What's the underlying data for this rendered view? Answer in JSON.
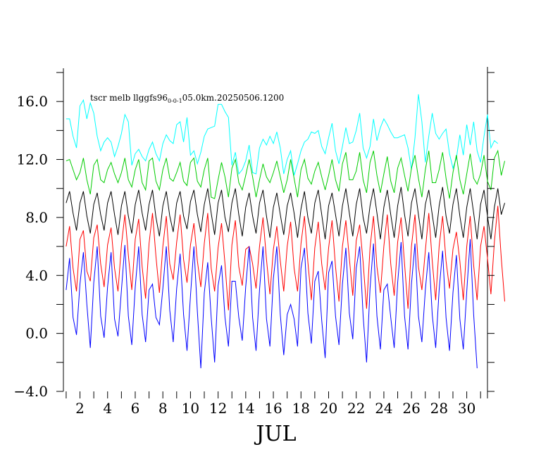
{
  "chart_data": {
    "type": "line",
    "title_parts": [
      "tscr melb llggfs96",
      "0-0-1",
      "05.0km.20250506.1200"
    ],
    "xlabel": "JUL",
    "ylabel": "",
    "xlim": [
      0.8,
      31.5
    ],
    "ylim": [
      -4,
      18
    ],
    "x_ticks": [
      2,
      4,
      6,
      8,
      10,
      12,
      14,
      16,
      18,
      20,
      22,
      24,
      26,
      28,
      30
    ],
    "y_ticks": [
      -4,
      0,
      4,
      8,
      12,
      16
    ],
    "y_tick_labels": [
      "−4.0",
      "0.0",
      "4.0",
      "8.0",
      "12.0",
      "16.0"
    ],
    "grid": false,
    "x_start": 1,
    "x_step": 0.25,
    "series": [
      {
        "color": "#00ffff",
        "values": [
          14.8,
          14.8,
          13.6,
          12.8,
          15.7,
          16.1,
          14.8,
          15.9,
          15.2,
          13.6,
          12.6,
          13.2,
          13.5,
          13.2,
          12.2,
          12.9,
          13.8,
          15.1,
          14.6,
          11.6,
          12.4,
          12.7,
          12.2,
          11.9,
          12.7,
          13.2,
          12.4,
          11.9,
          13.1,
          13.7,
          13.3,
          13.1,
          14.4,
          14.6,
          13.2,
          14.9,
          12.3,
          12.6,
          11.7,
          12.5,
          13.6,
          14.1,
          14.2,
          14.3,
          15.8,
          15.8,
          15.3,
          14.9,
          11.6,
          12.5,
          11.0,
          11.3,
          11.9,
          13.0,
          11.1,
          11.0,
          12.8,
          13.4,
          13.0,
          13.6,
          13.1,
          13.9,
          12.8,
          11.0,
          12.0,
          12.6,
          10.9,
          11.7,
          12.6,
          13.2,
          13.4,
          13.9,
          13.8,
          14.0,
          12.9,
          12.4,
          13.5,
          14.5,
          12.6,
          11.7,
          12.9,
          14.2,
          13.1,
          13.2,
          14.0,
          15.2,
          12.8,
          12.1,
          12.9,
          14.8,
          13.3,
          14.2,
          14.8,
          14.4,
          13.9,
          13.5,
          13.5,
          13.6,
          13.7,
          12.8,
          11.3,
          13.5,
          16.5,
          14.6,
          11.8,
          13.6,
          15.2,
          13.8,
          13.4,
          13.8,
          14.1,
          12.4,
          11.4,
          12.1,
          13.7,
          12.3,
          14.4,
          13.0,
          14.6,
          12.6,
          11.8,
          13.6,
          15.1,
          12.8,
          13.3,
          13.1
        ]
      },
      {
        "color": "#00cc00",
        "values": [
          11.9,
          12.0,
          11.3,
          10.6,
          11.1,
          12.1,
          10.6,
          9.6,
          11.6,
          12.0,
          10.6,
          10.4,
          11.3,
          11.8,
          11.0,
          10.4,
          11.1,
          12.1,
          10.6,
          10.1,
          11.3,
          12.0,
          10.4,
          9.9,
          11.9,
          12.1,
          10.5,
          9.9,
          11.3,
          12.1,
          10.7,
          10.5,
          11.1,
          11.8,
          10.5,
          10.2,
          11.8,
          12.1,
          10.5,
          10.1,
          11.3,
          12.1,
          9.4,
          9.3,
          10.6,
          11.8,
          10.8,
          9.4,
          11.4,
          12.0,
          10.4,
          9.9,
          10.9,
          12.0,
          10.8,
          9.4,
          10.6,
          11.7,
          10.8,
          10.4,
          11.1,
          11.9,
          10.8,
          9.7,
          10.6,
          12.0,
          10.7,
          9.4,
          11.3,
          12.0,
          10.7,
          10.3,
          11.2,
          11.8,
          10.8,
          9.9,
          10.9,
          12.0,
          10.6,
          9.8,
          11.7,
          12.5,
          10.6,
          10.6,
          11.2,
          12.5,
          10.6,
          9.7,
          11.8,
          12.6,
          10.9,
          9.7,
          11.0,
          12.2,
          10.5,
          9.7,
          11.4,
          12.1,
          10.9,
          9.8,
          11.4,
          12.3,
          10.7,
          9.4,
          11.3,
          12.6,
          10.4,
          10.4,
          11.3,
          12.5,
          10.7,
          9.3,
          11.1,
          12.3,
          10.6,
          9.6,
          11.0,
          12.4,
          10.7,
          10.3,
          11.0,
          12.3,
          10.5,
          9.9,
          12.1,
          12.6,
          10.9,
          11.9
        ]
      },
      {
        "color": "#000000",
        "values": [
          9.0,
          9.8,
          8.3,
          7.1,
          9.0,
          9.8,
          8.1,
          6.9,
          8.9,
          9.7,
          8.2,
          7.1,
          9.0,
          9.8,
          8.2,
          6.8,
          8.8,
          9.8,
          8.1,
          6.9,
          8.9,
          9.9,
          8.3,
          7.1,
          8.9,
          9.9,
          8.0,
          6.7,
          8.8,
          9.8,
          8.1,
          7.0,
          9.0,
          9.8,
          8.1,
          7.2,
          9.1,
          9.9,
          8.2,
          7.0,
          8.9,
          10.0,
          8.3,
          6.8,
          9.0,
          9.9,
          8.0,
          7.0,
          9.0,
          10.0,
          8.2,
          6.7,
          8.7,
          9.7,
          8.1,
          6.9,
          9.0,
          9.9,
          8.1,
          6.6,
          8.7,
          9.7,
          8.2,
          6.8,
          8.8,
          9.7,
          8.3,
          6.6,
          8.6,
          9.8,
          8.0,
          6.9,
          9.0,
          9.9,
          8.2,
          6.5,
          8.8,
          9.7,
          8.2,
          6.7,
          8.8,
          10.0,
          8.3,
          6.7,
          8.9,
          10.0,
          8.0,
          6.9,
          8.8,
          10.0,
          8.3,
          6.5,
          8.7,
          9.9,
          8.2,
          6.6,
          8.8,
          10.1,
          8.2,
          6.7,
          9.0,
          10.0,
          8.2,
          6.5,
          8.9,
          9.9,
          8.2,
          6.6,
          8.8,
          10.1,
          8.1,
          6.9,
          8.9,
          10.0,
          8.1,
          6.6,
          8.7,
          10.0,
          8.3,
          6.5,
          8.9,
          9.9,
          8.1,
          6.5,
          8.7,
          10.0,
          8.2,
          9.0
        ]
      },
      {
        "color": "#ff0000",
        "values": [
          6.0,
          7.4,
          4.5,
          2.9,
          6.5,
          7.1,
          4.3,
          3.6,
          6.6,
          7.5,
          4.8,
          3.2,
          6.1,
          7.3,
          4.5,
          2.9,
          6.1,
          8.2,
          5.4,
          3.0,
          6.5,
          7.9,
          4.6,
          2.4,
          6.2,
          8.3,
          5.3,
          2.8,
          6.0,
          8.1,
          4.8,
          3.7,
          6.3,
          8.2,
          5.1,
          3.5,
          6.1,
          7.6,
          5.0,
          3.2,
          6.2,
          8.3,
          4.5,
          2.9,
          5.9,
          7.6,
          4.8,
          1.6,
          6.1,
          7.8,
          4.6,
          3.3,
          5.8,
          6.0,
          4.8,
          3.1,
          6.0,
          8.0,
          5.1,
          2.7,
          5.8,
          7.4,
          5.0,
          2.9,
          6.0,
          7.7,
          4.5,
          2.9,
          6.2,
          8.1,
          4.9,
          2.3,
          5.9,
          7.7,
          4.8,
          3.0,
          5.9,
          7.8,
          4.6,
          2.2,
          6.0,
          7.8,
          5.2,
          2.6,
          6.4,
          7.5,
          4.9,
          1.7,
          5.9,
          8.1,
          4.6,
          2.8,
          6.0,
          8.2,
          4.8,
          2.6,
          6.3,
          8.0,
          4.8,
          1.7,
          6.0,
          8.2,
          4.6,
          3.0,
          5.7,
          8.3,
          5.0,
          2.3,
          6.0,
          8.1,
          5.0,
          3.1,
          5.8,
          7.0,
          5.0,
          2.3,
          6.0,
          8.1,
          4.7,
          2.3,
          6.0,
          7.4,
          5.2,
          2.7,
          6.3,
          8.8,
          5.2,
          2.2
        ]
      },
      {
        "color": "#0000ff",
        "values": [
          3.0,
          5.2,
          1.1,
          -0.1,
          3.4,
          5.6,
          2.0,
          -1.0,
          3.5,
          6.0,
          1.2,
          -0.3,
          3.2,
          5.6,
          1.0,
          -0.2,
          3.0,
          6.1,
          1.2,
          -0.8,
          3.2,
          6.0,
          1.3,
          -0.6,
          3.0,
          3.4,
          1.1,
          0.6,
          3.1,
          6.0,
          1.6,
          -0.6,
          3.1,
          5.5,
          1.3,
          -1.2,
          2.6,
          6.0,
          1.5,
          -2.4,
          2.8,
          4.9,
          1.1,
          -2.0,
          3.3,
          4.7,
          1.1,
          -0.9,
          3.6,
          3.6,
          1.1,
          -0.5,
          3.2,
          6.0,
          1.1,
          -1.2,
          3.0,
          6.0,
          1.0,
          -0.9,
          3.8,
          6.0,
          1.3,
          -1.5,
          1.3,
          2.0,
          1.0,
          -0.9,
          4.5,
          5.9,
          1.4,
          -0.7,
          3.6,
          4.3,
          0.9,
          -1.7,
          4.2,
          5.0,
          1.2,
          -0.8,
          3.4,
          5.9,
          1.4,
          -0.4,
          4.5,
          6.0,
          1.2,
          -2.0,
          3.1,
          6.2,
          1.2,
          -1.1,
          3.0,
          3.4,
          1.1,
          -1.0,
          3.5,
          6.3,
          1.2,
          -1.1,
          3.4,
          6.2,
          1.2,
          -0.6,
          3.0,
          5.6,
          1.3,
          -1.0,
          3.0,
          5.7,
          1.1,
          -1.2,
          2.8,
          5.4,
          1.0,
          -1.1,
          2.9,
          6.5,
          1.3,
          -2.4
        ]
      }
    ]
  }
}
